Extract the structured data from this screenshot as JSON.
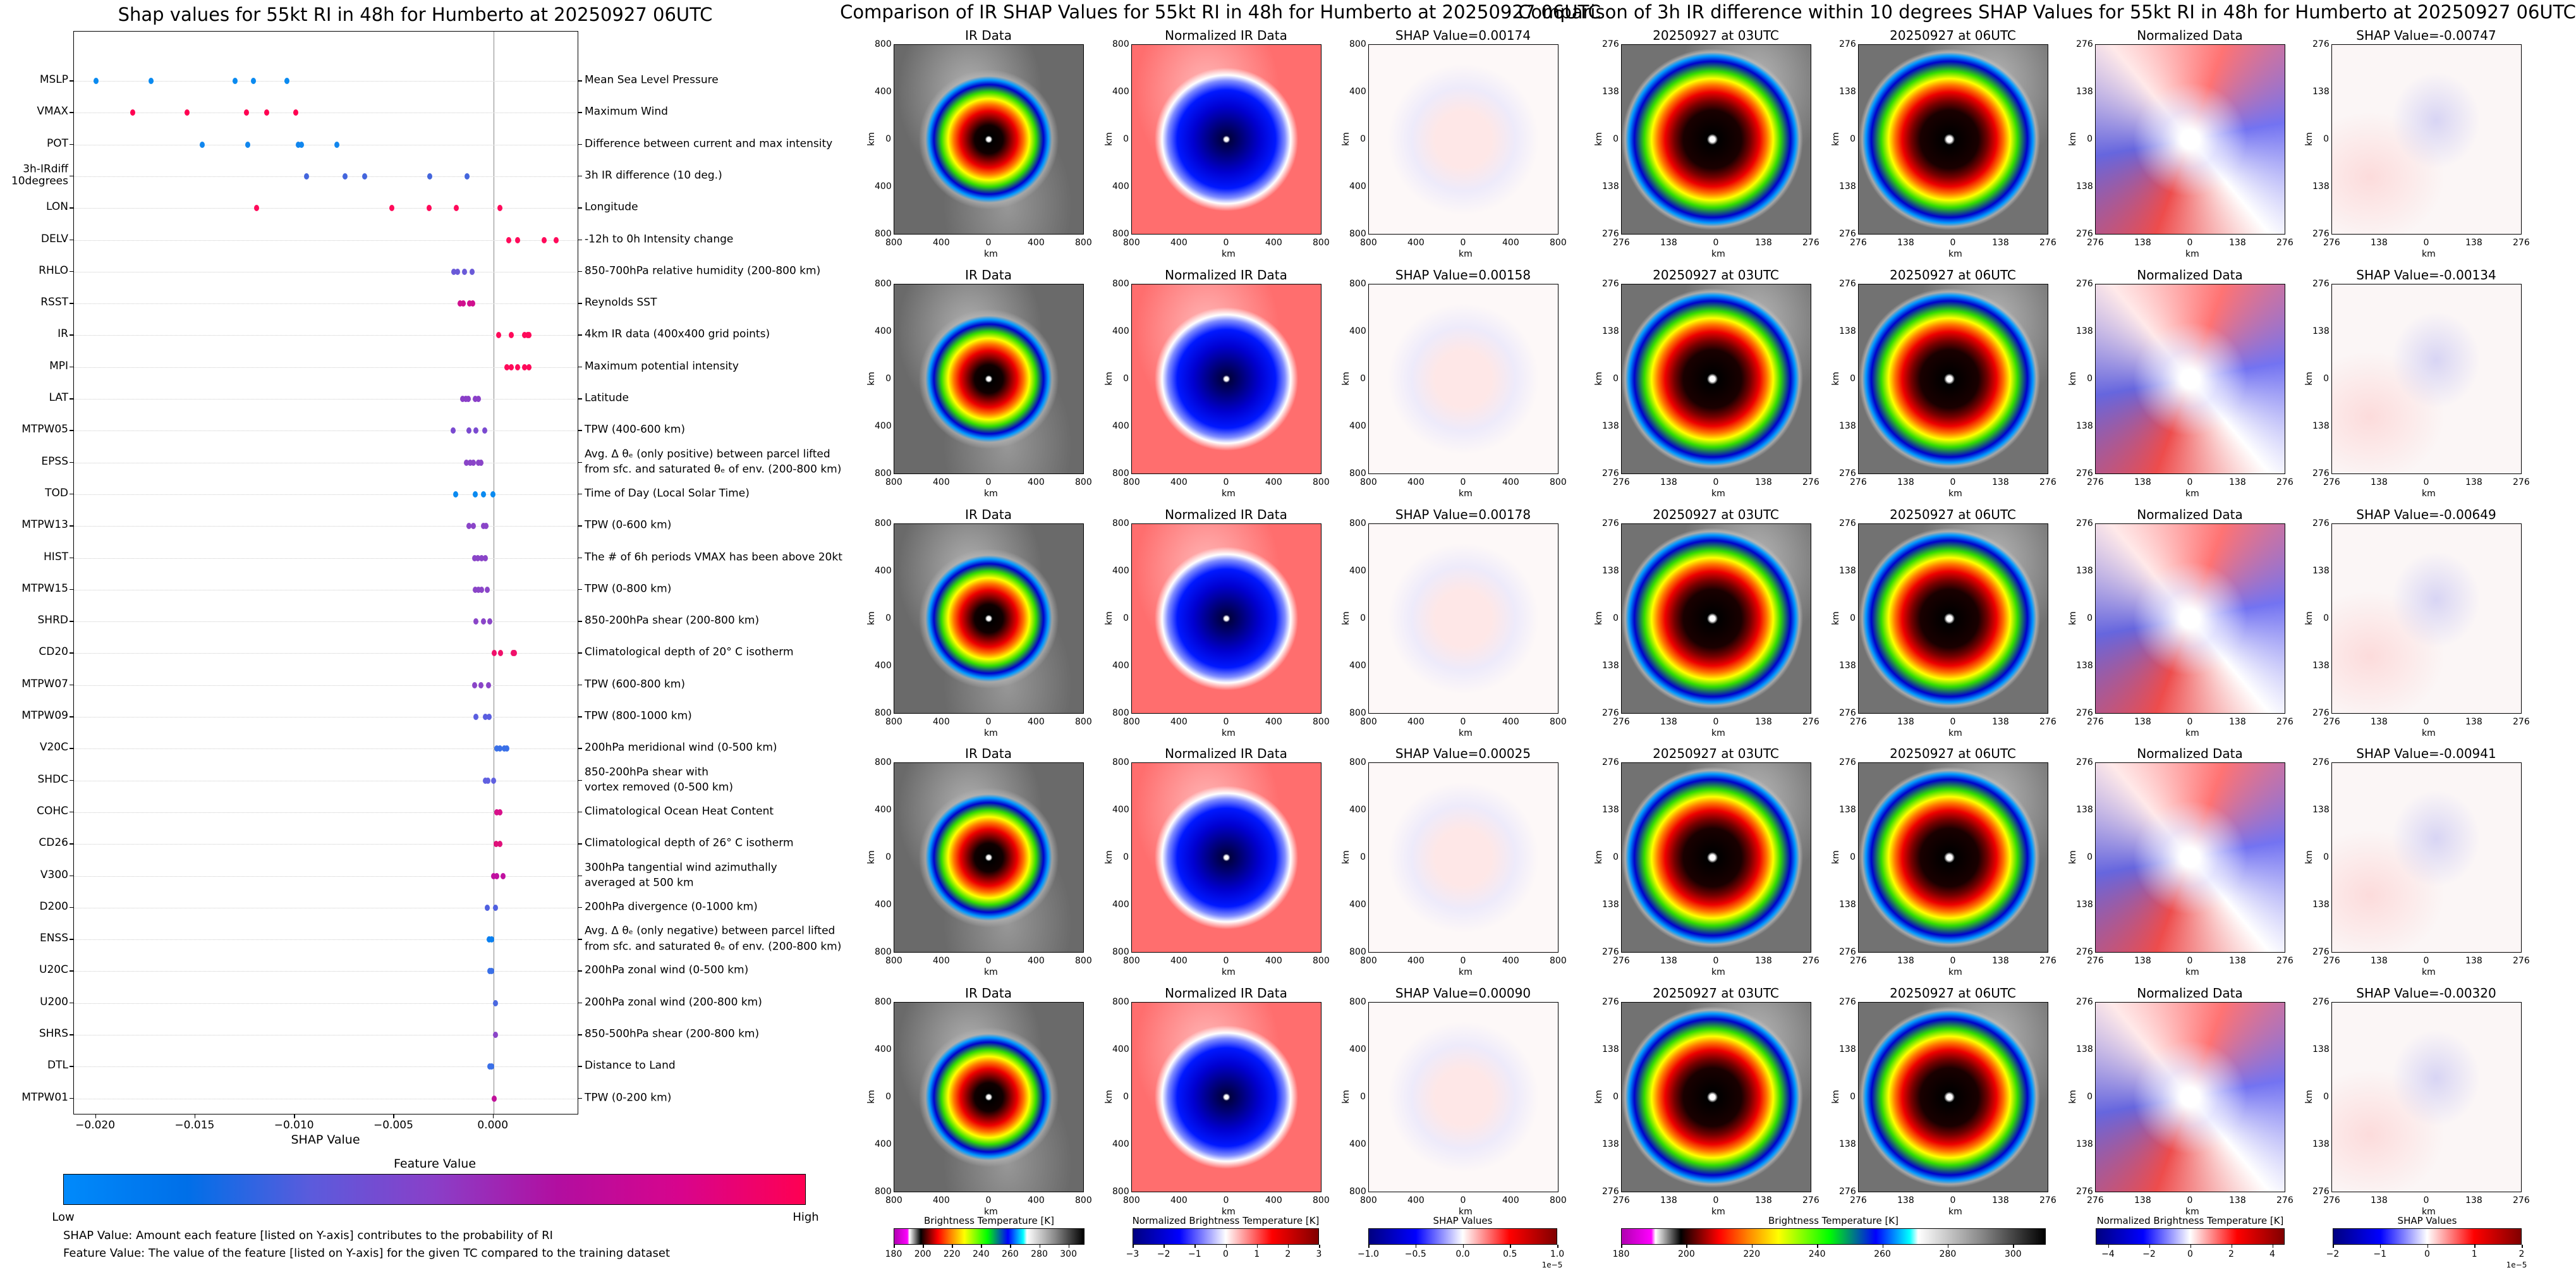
{
  "chart_data": {
    "type": "scatter",
    "title": "Shap values for 55kt RI in 48h for Humberto at 20250927 06UTC",
    "xlabel": "SHAP Value",
    "xlim": [
      -0.0211,
      0.0043
    ],
    "xticks": [
      -0.02,
      -0.015,
      -0.01,
      -0.005,
      0.0
    ],
    "xtick_labels": [
      "−0.020",
      "−0.015",
      "−0.010",
      "−0.005",
      "0.000"
    ],
    "grid": "horizontal dotted",
    "features": [
      {
        "code": "MSLP",
        "description": "Mean Sea Level Pressure",
        "color": "#0a8af0",
        "shap": [
          -0.02,
          -0.01723,
          -0.013,
          -0.01207,
          -0.01038
        ]
      },
      {
        "code": "VMAX",
        "description": "Maximum Wind",
        "color": "#ff0052",
        "shap": [
          -0.01815,
          -0.0154,
          -0.01242,
          -0.01139,
          -0.00993
        ]
      },
      {
        "code": "POT",
        "description": "Difference between current and max intensity",
        "color": "#1086ee",
        "shap": [
          -0.01464,
          -0.01236,
          -0.0098,
          -0.00967,
          -0.00787
        ]
      },
      {
        "code": "3h-IRdiff\n10degrees",
        "description": "3h IR difference (10 deg.)",
        "color": "#4466dd",
        "shap": [
          -0.00941,
          -0.00747,
          -0.00649,
          -0.0032,
          -0.00134
        ]
      },
      {
        "code": "LON",
        "description": "Longitude",
        "color": "#ff0a5a",
        "shap": [
          -0.01192,
          -0.0051,
          -0.00322,
          -0.00188,
          0.00034
        ]
      },
      {
        "code": "DELV",
        "description": "-12h to 0h Intensity change",
        "color": "#ff0a5a",
        "shap": [
          0.00077,
          0.00122,
          0.00256,
          0.00317
        ]
      },
      {
        "code": "RHLO",
        "description": "850-700hPa relative humidity (200-800 km)",
        "color": "#6a5ad8",
        "shap": [
          -0.00201,
          -0.0018,
          -0.00145,
          -0.00108
        ]
      },
      {
        "code": "RSST",
        "description": "Reynolds SST",
        "color": "#d0108e",
        "shap": [
          -0.00169,
          -0.00153,
          -0.00119,
          -0.00103
        ]
      },
      {
        "code": "IR",
        "description": "4km IR data (400x400 grid points)",
        "color": "#ff0a5a",
        "shap": [
          0.00025,
          0.0009,
          0.00158,
          0.00174,
          0.00178
        ]
      },
      {
        "code": "MPI",
        "description": "Maximum potential intensity",
        "color": "#ff0a5a",
        "shap": [
          0.00069,
          0.0009,
          0.00122,
          0.00156,
          0.0018
        ]
      },
      {
        "code": "LAT",
        "description": "Latitude",
        "color": "#8a3fc8",
        "shap": [
          -0.00156,
          -0.0014,
          -0.00127,
          -0.00092,
          -0.00077
        ]
      },
      {
        "code": "MTPW05",
        "description": "TPW (400-600 km)",
        "color": "#7a4ad0",
        "shap": [
          -0.00203,
          -0.00124,
          -0.00087,
          -0.00045
        ]
      },
      {
        "code": "EPSS",
        "description": "Avg. Δ θₑ (only positive) between parcel lifted\nfrom sfc. and saturated θₑ of env. (200-800 km)",
        "color": "#8a45c8",
        "shap": [
          -0.00135,
          -0.00116,
          -0.001,
          -0.00074,
          -0.00063
        ]
      },
      {
        "code": "TOD",
        "description": "Time of Day (Local Solar Time)",
        "color": "#0a8af0",
        "shap": [
          -0.0019,
          -0.0009,
          -0.0005,
          -3e-05
        ]
      },
      {
        "code": "MTPW13",
        "description": "TPW (0-600 km)",
        "color": "#8a45c8",
        "shap": [
          -0.00122,
          -0.001,
          -0.0005,
          -0.00037
        ]
      },
      {
        "code": "HIST",
        "description": "The # of 6h periods VMAX has been above 20kt",
        "color": "#8a45c8",
        "shap": [
          -0.00095,
          -0.00079,
          -0.00061,
          -0.0004
        ]
      },
      {
        "code": "MTPW15",
        "description": "TPW (0-800 km)",
        "color": "#8a45c8",
        "shap": [
          -0.00092,
          -0.00077,
          -0.00058,
          -0.00032
        ]
      },
      {
        "code": "SHRD",
        "description": "850-200hPa shear (200-800 km)",
        "color": "#8a45c8",
        "shap": [
          -0.00087,
          -0.0005,
          -0.00018
        ]
      },
      {
        "code": "CD20",
        "description": "Climatological depth of 20° C isotherm",
        "color": "#f0106a",
        "shap": [
          5e-05,
          0.00037,
          0.001,
          0.00106
        ]
      },
      {
        "code": "MTPW07",
        "description": "TPW (600-800 km)",
        "color": "#8a45c8",
        "shap": [
          -0.00095,
          -0.00063,
          -0.00024
        ]
      },
      {
        "code": "MTPW09",
        "description": "TPW (800-1000 km)",
        "color": "#5a5ee0",
        "shap": [
          -0.00087,
          -0.00042,
          -0.00021
        ]
      },
      {
        "code": "V20C",
        "description": "200hPa meridional wind (0-500 km)",
        "color": "#3a70e8",
        "shap": [
          0.00016,
          0.00032,
          0.00055,
          0.00069
        ]
      },
      {
        "code": "SHDC",
        "description": "850-200hPa shear with\nvortex removed (0-500 km)",
        "color": "#6060e0",
        "shap": [
          -0.00042,
          -0.00029,
          0.0
        ]
      },
      {
        "code": "COHC",
        "description": "Climatological Ocean Heat Content",
        "color": "#d8108a",
        "shap": [
          0.00018,
          0.00032
        ]
      },
      {
        "code": "CD26",
        "description": "Climatological depth of 26° C isotherm",
        "color": "#e0107a",
        "shap": [
          0.00013,
          0.00032
        ]
      },
      {
        "code": "V300",
        "description": "300hPa tangential wind azimuthally\naveraged at 500 km",
        "color": "#c010a0",
        "shap": [
          0.0,
          0.00016,
          0.00048
        ]
      },
      {
        "code": "D200",
        "description": "200hPa divergence (0-1000 km)",
        "color": "#5060e0",
        "shap": [
          -0.00032,
          0.00011
        ]
      },
      {
        "code": "ENSS",
        "description": "Avg. Δ θₑ (only negative) between parcel lifted\nfrom sfc. and saturated θₑ of env. (200-800 km)",
        "color": "#0a80f0",
        "shap": [
          -0.00021,
          -8e-05
        ]
      },
      {
        "code": "U20C",
        "description": "200hPa zonal wind (0-500 km)",
        "color": "#3a70e8",
        "shap": [
          -0.00018,
          -0.0001
        ]
      },
      {
        "code": "U200",
        "description": "200hPa zonal wind (200-800 km)",
        "color": "#4a68e0",
        "shap": [
          0.00011
        ]
      },
      {
        "code": "SHRS",
        "description": "850-500hPa shear (200-800 km)",
        "color": "#8a45c8",
        "shap": [
          0.00011
        ]
      },
      {
        "code": "DTL",
        "description": "Distance to Land",
        "color": "#3a70e8",
        "shap": [
          -0.00018,
          -0.0001
        ]
      },
      {
        "code": "MTPW01",
        "description": "TPW (0-200 km)",
        "color": "#c0109a",
        "shap": [
          3e-05
        ]
      }
    ]
  },
  "legend": {
    "title": "Feature Value",
    "low": "Low",
    "high": "High",
    "colors": [
      "#008afb",
      "#006fe8",
      "#5b5bdc",
      "#8a3fc8",
      "#b20ea0",
      "#d8048c",
      "#ff0052"
    ],
    "notes": [
      "SHAP Value: Amount each feature [listed on Y-axis] contributes to the probability of RI",
      "Feature Value: The value of the feature [listed on Y-axis] for the given TC compared to the training dataset"
    ]
  },
  "ir_comparison": {
    "title": "Comparison of IR SHAP Values for 55kt RI in 48h for Humberto at 20250927 06UTC",
    "axis_label": "km",
    "ticks": [
      "800",
      "400",
      "0",
      "400",
      "800"
    ],
    "rows": [
      {
        "titles": [
          "IR Data",
          "Normalized IR Data",
          "SHAP Value=0.00174"
        ]
      },
      {
        "titles": [
          "IR Data",
          "Normalized IR Data",
          "SHAP Value=0.00158"
        ]
      },
      {
        "titles": [
          "IR Data",
          "Normalized IR Data",
          "SHAP Value=0.00178"
        ]
      },
      {
        "titles": [
          "IR Data",
          "Normalized IR Data",
          "SHAP Value=0.00025"
        ]
      },
      {
        "titles": [
          "IR Data",
          "Normalized IR Data",
          "SHAP Value=0.00090"
        ]
      }
    ],
    "colorbars": [
      {
        "title": "Brightness Temperature [K]",
        "ticks": [
          "180",
          "200",
          "220",
          "240",
          "260",
          "280",
          "300"
        ],
        "range": [
          180,
          311
        ],
        "values": [
          180,
          200,
          220,
          240,
          260,
          280,
          300
        ],
        "exponent": ""
      },
      {
        "title": "Normalized Brightness Temperature [K]",
        "ticks": [
          "−3",
          "−2",
          "−1",
          "0",
          "1",
          "2",
          "3"
        ],
        "range": [
          -3,
          3
        ],
        "values": [
          -3,
          -2,
          -1,
          0,
          1,
          2,
          3
        ],
        "exponent": ""
      },
      {
        "title": "SHAP Values",
        "ticks": [
          "−1.0",
          "−0.5",
          "0.0",
          "0.5",
          "1.0"
        ],
        "range": [
          -1,
          1
        ],
        "values": [
          -1,
          -0.5,
          0,
          0.5,
          1
        ],
        "exponent": "1e−5"
      }
    ]
  },
  "diff_comparison": {
    "title": "Comparison of 3h IR difference within 10 degrees SHAP Values for 55kt RI in 48h for Humberto at 20250927 06UTC",
    "axis_label": "km",
    "ticks": [
      "276",
      "138",
      "0",
      "138",
      "276"
    ],
    "rows": [
      {
        "titles": [
          "20250927 at 03UTC",
          "20250927 at 06UTC",
          "Normalized Data",
          "SHAP Value=-0.00747"
        ]
      },
      {
        "titles": [
          "20250927 at 03UTC",
          "20250927 at 06UTC",
          "Normalized Data",
          "SHAP Value=-0.00134"
        ]
      },
      {
        "titles": [
          "20250927 at 03UTC",
          "20250927 at 06UTC",
          "Normalized Data",
          "SHAP Value=-0.00649"
        ]
      },
      {
        "titles": [
          "20250927 at 03UTC",
          "20250927 at 06UTC",
          "Normalized Data",
          "SHAP Value=-0.00941"
        ]
      },
      {
        "titles": [
          "20250927 at 03UTC",
          "20250927 at 06UTC",
          "Normalized Data",
          "SHAP Value=-0.00320"
        ]
      }
    ],
    "colorbars": [
      {
        "title": "Brightness Temperature [K]",
        "ticks": [
          "180",
          "200",
          "220",
          "240",
          "260",
          "280",
          "300"
        ],
        "range": [
          180,
          310
        ],
        "values": [
          180,
          200,
          220,
          240,
          260,
          280,
          300
        ],
        "exponent": ""
      },
      {
        "title": "Normalized Brightness Temperature [K]",
        "ticks": [
          "−4",
          "−2",
          "0",
          "2",
          "4"
        ],
        "range": [
          -4.6,
          4.6
        ],
        "values": [
          -4,
          -2,
          0,
          2,
          4
        ],
        "exponent": ""
      },
      {
        "title": "SHAP Values",
        "ticks": [
          "−2",
          "−1",
          "0",
          "1",
          "2"
        ],
        "range": [
          -2,
          2
        ],
        "values": [
          -2,
          -1,
          0,
          1,
          2
        ],
        "exponent": "1e−5"
      }
    ]
  }
}
